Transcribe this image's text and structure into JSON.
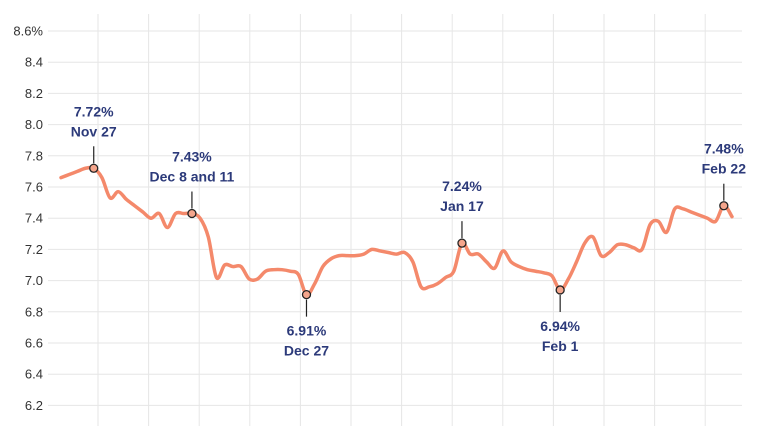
{
  "chart_data": {
    "type": "line",
    "title": "",
    "xlabel": "",
    "ylabel": "",
    "ylim": [
      6.1,
      8.6
    ],
    "y_ticks": [
      6.2,
      6.4,
      6.6,
      6.8,
      7.0,
      7.2,
      7.4,
      7.6,
      7.8,
      8.0,
      8.2,
      8.4,
      8.6
    ],
    "y_tick_labels": [
      "6.2",
      "6.4",
      "6.6",
      "6.8",
      "7.0",
      "7.2",
      "7.4",
      "7.6",
      "7.8",
      "8.0",
      "8.2",
      "8.4",
      "8.6%"
    ],
    "grid": true,
    "line_color": "#f4896b",
    "annotation_color": "#2c3a7a",
    "series": [
      {
        "values": [
          7.66,
          7.68,
          7.7,
          7.72,
          7.72,
          7.66,
          7.53,
          7.57,
          7.52,
          7.48,
          7.44,
          7.4,
          7.43,
          7.34,
          7.43,
          7.43,
          7.43,
          7.4,
          7.28,
          7.02,
          7.1,
          7.09,
          7.09,
          7.01,
          7.01,
          7.06,
          7.07,
          7.07,
          7.06,
          7.04,
          6.91,
          6.98,
          7.09,
          7.14,
          7.16,
          7.16,
          7.16,
          7.17,
          7.2,
          7.19,
          7.18,
          7.17,
          7.18,
          7.12,
          6.96,
          6.96,
          6.98,
          7.02,
          7.06,
          7.24,
          7.17,
          7.17,
          7.12,
          7.08,
          7.19,
          7.12,
          7.09,
          7.07,
          7.06,
          7.05,
          7.03,
          6.94,
          7.01,
          7.12,
          7.24,
          7.28,
          7.16,
          7.18,
          7.23,
          7.23,
          7.21,
          7.2,
          7.36,
          7.38,
          7.31,
          7.46,
          7.46,
          7.44,
          7.42,
          7.4,
          7.38,
          7.48,
          7.41
        ]
      }
    ],
    "annotations": [
      {
        "index": 4,
        "value": 7.72,
        "value_label": "7.72%",
        "date_label": "Nov 27",
        "position": "above"
      },
      {
        "index": 16,
        "value": 7.43,
        "value_label": "7.43%",
        "date_label": "Dec 8 and 11",
        "position": "above"
      },
      {
        "index": 30,
        "value": 6.91,
        "value_label": "6.91%",
        "date_label": "Dec 27",
        "position": "below"
      },
      {
        "index": 49,
        "value": 7.24,
        "value_label": "7.24%",
        "date_label": "Jan 17",
        "position": "above"
      },
      {
        "index": 61,
        "value": 6.94,
        "value_label": "6.94%",
        "date_label": "Feb 1",
        "position": "below"
      },
      {
        "index": 81,
        "value": 7.48,
        "value_label": "7.48%",
        "date_label": "Feb 22",
        "position": "above"
      }
    ]
  }
}
